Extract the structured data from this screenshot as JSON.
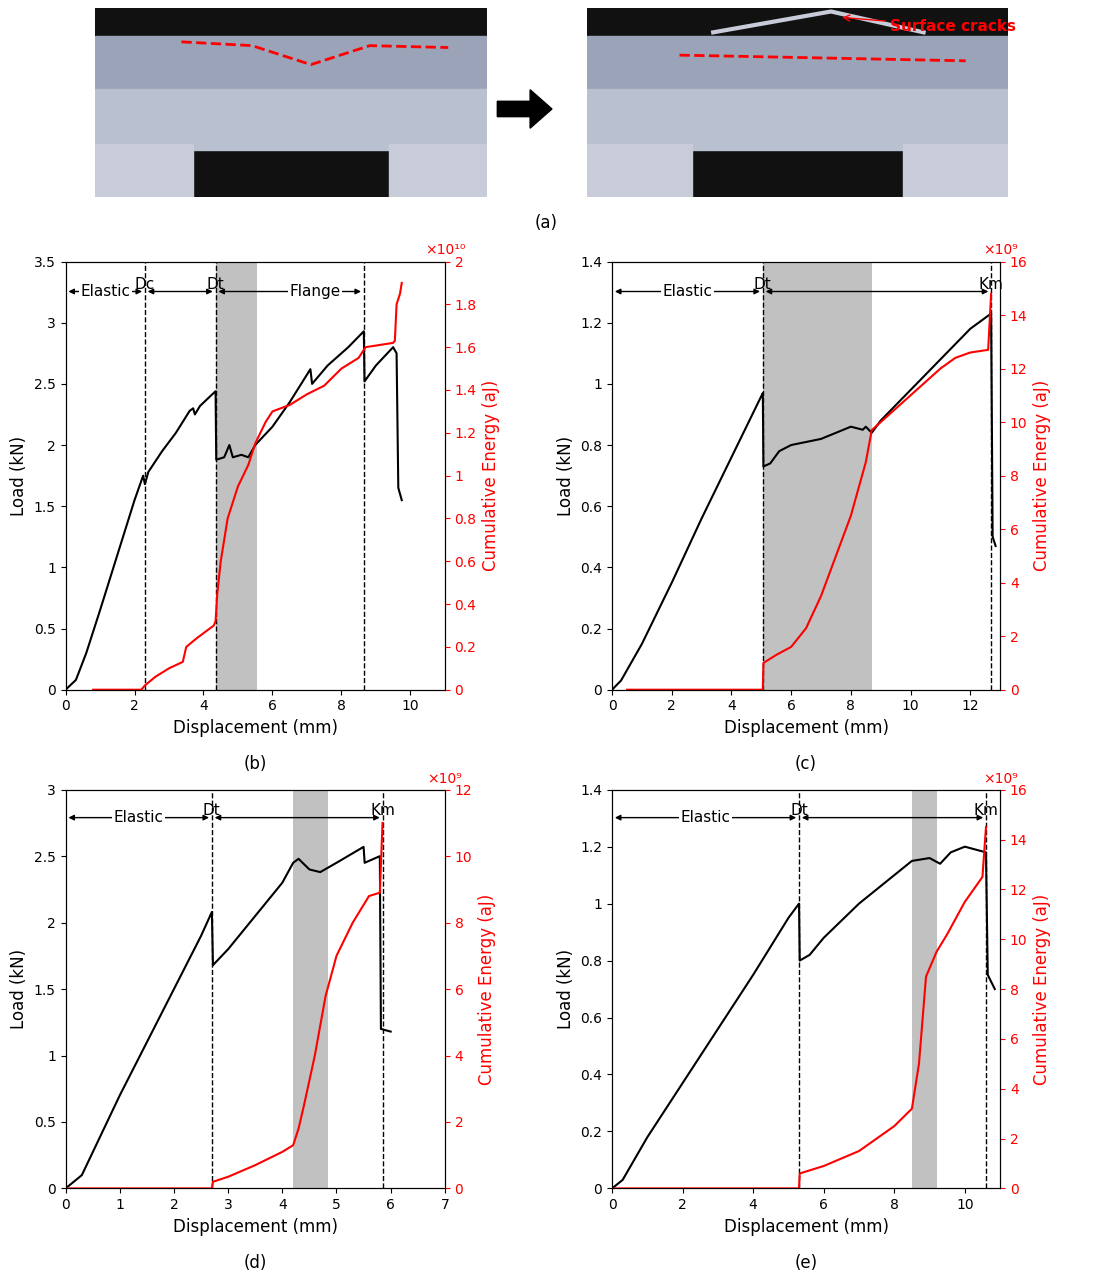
{
  "panel_a": {
    "label": "(a)",
    "annotation": "Surface cracks"
  },
  "chart_data": [
    {
      "type": "line",
      "panel_label": "(b)",
      "xlabel": "Displacement (mm)",
      "ylabel": "Load (kN)",
      "y2label": "Cumulative Energy (aJ)",
      "y2_multiplier": "×10¹⁰",
      "xlim": [
        0,
        11
      ],
      "xticks": [
        0,
        2,
        4,
        6,
        8,
        10
      ],
      "ylim": [
        0,
        3.5
      ],
      "yticks": [
        0,
        0.5,
        1,
        1.5,
        2,
        2.5,
        3,
        3.5
      ],
      "y2lim": [
        0,
        2
      ],
      "y2ticks": [
        0,
        0.2,
        0.4,
        0.6,
        0.8,
        1,
        1.2,
        1.4,
        1.6,
        1.8,
        2
      ],
      "events": [
        {
          "x": 2.3,
          "label": "Dc"
        },
        {
          "x": 4.35,
          "label": "Dt"
        },
        {
          "x": 8.65
        }
      ],
      "spans": [
        {
          "from": 0,
          "to": 2.3,
          "label": "Elastic"
        },
        {
          "from": 2.3,
          "to": 4.35
        },
        {
          "from": 4.35,
          "to": 8.65,
          "label": "Flange"
        }
      ],
      "shaded": [
        4.35,
        5.55
      ],
      "series": [
        {
          "color": "#000000",
          "x": [
            0,
            0.3,
            0.6,
            1,
            1.5,
            2,
            2.25,
            2.3,
            2.4,
            2.8,
            3.2,
            3.6,
            3.7,
            3.75,
            3.9,
            4.2,
            4.35,
            4.37,
            4.6,
            4.75,
            4.85,
            5.1,
            5.3,
            5.5,
            6,
            6.5,
            7.1,
            7.15,
            7.6,
            8.2,
            8.65,
            8.67,
            9,
            9.5,
            9.6,
            9.65,
            9.75
          ],
          "values": [
            0,
            0.08,
            0.3,
            0.65,
            1.1,
            1.55,
            1.75,
            1.68,
            1.78,
            1.95,
            2.1,
            2.28,
            2.3,
            2.25,
            2.32,
            2.4,
            2.44,
            1.88,
            1.9,
            2.0,
            1.9,
            1.92,
            1.9,
            2.0,
            2.15,
            2.35,
            2.62,
            2.5,
            2.65,
            2.8,
            2.93,
            2.52,
            2.65,
            2.8,
            2.75,
            1.65,
            1.55
          ]
        },
        {
          "color": "#ff0000",
          "axis": "y2",
          "x": [
            0.8,
            2.2,
            2.3,
            2.6,
            3,
            3.4,
            3.5,
            3.8,
            4.3,
            4.35,
            4.4,
            4.5,
            4.7,
            5,
            5.3,
            5.5,
            5.8,
            6,
            6.5,
            7,
            7.5,
            8,
            8.5,
            8.7,
            9.5,
            9.55,
            9.6,
            9.7,
            9.75
          ],
          "values": [
            0,
            0,
            0.02,
            0.06,
            0.1,
            0.13,
            0.2,
            0.24,
            0.3,
            0.32,
            0.45,
            0.6,
            0.8,
            0.95,
            1.05,
            1.15,
            1.25,
            1.3,
            1.33,
            1.38,
            1.42,
            1.5,
            1.55,
            1.6,
            1.62,
            1.63,
            1.8,
            1.85,
            1.9
          ]
        }
      ]
    },
    {
      "type": "line",
      "panel_label": "(c)",
      "xlabel": "Displacement (mm)",
      "ylabel": "Load (kN)",
      "y2label": "Cumulative Energy (aJ)",
      "y2_multiplier": "×10⁹",
      "xlim": [
        0,
        13
      ],
      "xticks": [
        0,
        2,
        4,
        6,
        8,
        10,
        12
      ],
      "ylim": [
        0,
        1.4
      ],
      "yticks": [
        0,
        0.2,
        0.4,
        0.6,
        0.8,
        1,
        1.2,
        1.4
      ],
      "y2lim": [
        0,
        16
      ],
      "y2ticks": [
        0,
        2,
        4,
        6,
        8,
        10,
        12,
        14,
        16
      ],
      "events": [
        {
          "x": 5.05,
          "label": "Dt"
        },
        {
          "x": 12.7,
          "label": "Km"
        }
      ],
      "spans": [
        {
          "from": 0,
          "to": 5.05,
          "label": "Elastic"
        },
        {
          "from": 5.05,
          "to": 12.7
        }
      ],
      "shaded": [
        5.05,
        8.7
      ],
      "series": [
        {
          "color": "#000000",
          "x": [
            0,
            0.3,
            1,
            2,
            3,
            4,
            5,
            5.05,
            5.07,
            5.3,
            5.6,
            6,
            6.5,
            7,
            7.5,
            8,
            8.4,
            8.5,
            8.7,
            9,
            10,
            11,
            12,
            12.7,
            12.75,
            12.85
          ],
          "values": [
            0,
            0.03,
            0.15,
            0.35,
            0.56,
            0.76,
            0.96,
            0.97,
            0.73,
            0.74,
            0.78,
            0.8,
            0.81,
            0.82,
            0.84,
            0.86,
            0.85,
            0.86,
            0.84,
            0.88,
            0.98,
            1.08,
            1.18,
            1.23,
            0.5,
            0.47
          ]
        },
        {
          "color": "#ff0000",
          "axis": "y2",
          "x": [
            0.5,
            5.05,
            5.07,
            5.5,
            6,
            6.5,
            7,
            7.5,
            8,
            8.5,
            8.7,
            9,
            9.5,
            10,
            10.5,
            11,
            11.5,
            12,
            12.6,
            12.7
          ],
          "values": [
            0,
            0,
            1.0,
            1.3,
            1.6,
            2.3,
            3.5,
            5,
            6.5,
            8.5,
            9.7,
            10,
            10.5,
            11,
            11.5,
            12,
            12.4,
            12.6,
            12.7,
            14.8
          ]
        }
      ]
    },
    {
      "type": "line",
      "panel_label": "(d)",
      "xlabel": "Displacement (mm)",
      "ylabel": "Load (kN)",
      "y2label": "Cumulative Energy (aJ)",
      "y2_multiplier": "×10⁹",
      "xlim": [
        0,
        7
      ],
      "xticks": [
        0,
        1,
        2,
        3,
        4,
        5,
        6,
        7
      ],
      "ylim": [
        0,
        3
      ],
      "yticks": [
        0,
        0.5,
        1,
        1.5,
        2,
        2.5,
        3
      ],
      "y2lim": [
        0,
        12
      ],
      "y2ticks": [
        0,
        2,
        4,
        6,
        8,
        10,
        12
      ],
      "events": [
        {
          "x": 2.7,
          "label": "Dt"
        },
        {
          "x": 5.85,
          "label": "Km"
        }
      ],
      "spans": [
        {
          "from": 0,
          "to": 2.7,
          "label": "Elastic"
        },
        {
          "from": 2.7,
          "to": 5.85
        }
      ],
      "shaded": [
        4.2,
        4.85
      ],
      "series": [
        {
          "color": "#000000",
          "x": [
            0,
            0.3,
            1,
            1.5,
            2,
            2.5,
            2.7,
            2.72,
            3,
            3.5,
            4,
            4.2,
            4.3,
            4.5,
            4.7,
            5,
            5.5,
            5.52,
            5.8,
            5.82,
            6
          ],
          "values": [
            0,
            0.1,
            0.7,
            1.1,
            1.5,
            1.9,
            2.08,
            1.68,
            1.8,
            2.05,
            2.3,
            2.45,
            2.48,
            2.4,
            2.38,
            2.45,
            2.57,
            2.45,
            2.5,
            1.2,
            1.18
          ]
        },
        {
          "color": "#ff0000",
          "axis": "y2",
          "x": [
            0,
            2.7,
            2.72,
            3,
            3.5,
            4,
            4.2,
            4.3,
            4.4,
            4.6,
            4.8,
            5,
            5.3,
            5.6,
            5.8,
            5.85
          ],
          "values": [
            0,
            0,
            0.2,
            0.35,
            0.7,
            1.1,
            1.3,
            1.8,
            2.5,
            4,
            5.8,
            7,
            8,
            8.8,
            8.9,
            11
          ]
        }
      ]
    },
    {
      "type": "line",
      "panel_label": "(e)",
      "xlabel": "Displacement (mm)",
      "ylabel": "Load (kN)",
      "y2label": "Cumulative Energy (aJ)",
      "y2_multiplier": "×10⁹",
      "xlim": [
        0,
        11
      ],
      "xticks": [
        0,
        2,
        4,
        6,
        8,
        10
      ],
      "ylim": [
        0,
        1.4
      ],
      "yticks": [
        0,
        0.2,
        0.4,
        0.6,
        0.8,
        1,
        1.2,
        1.4
      ],
      "y2lim": [
        0,
        16
      ],
      "y2ticks": [
        0,
        2,
        4,
        6,
        8,
        10,
        12,
        14,
        16
      ],
      "events": [
        {
          "x": 5.3,
          "label": "Dt"
        },
        {
          "x": 10.6,
          "label": "Km"
        }
      ],
      "spans": [
        {
          "from": 0,
          "to": 5.3,
          "label": "Elastic"
        },
        {
          "from": 5.3,
          "to": 10.6
        }
      ],
      "shaded": [
        8.5,
        9.2
      ],
      "series": [
        {
          "color": "#000000",
          "x": [
            0,
            0.3,
            1,
            2,
            3,
            4,
            5,
            5.3,
            5.32,
            5.6,
            6,
            7,
            8,
            8.5,
            9,
            9.3,
            9.6,
            10,
            10.6,
            10.65,
            10.85
          ],
          "values": [
            0,
            0.03,
            0.18,
            0.37,
            0.56,
            0.75,
            0.95,
            1.0,
            0.8,
            0.82,
            0.88,
            1.0,
            1.1,
            1.15,
            1.16,
            1.14,
            1.18,
            1.2,
            1.18,
            0.75,
            0.7
          ]
        },
        {
          "color": "#ff0000",
          "axis": "y2",
          "x": [
            0,
            5.3,
            5.32,
            6,
            7,
            8,
            8.5,
            8.7,
            8.9,
            9.2,
            9.5,
            10,
            10.5,
            10.6
          ],
          "values": [
            0,
            0,
            0.6,
            0.9,
            1.5,
            2.5,
            3.2,
            5,
            8.5,
            9.5,
            10.2,
            11.5,
            12.5,
            14.5
          ]
        }
      ]
    }
  ]
}
